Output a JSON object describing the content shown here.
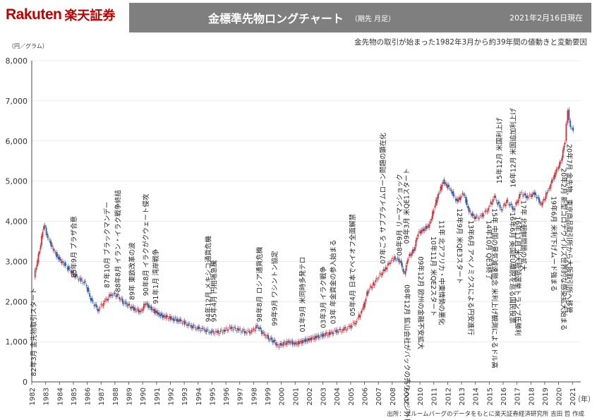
{
  "brand": {
    "name": "Rakuten",
    "kanji": "楽天証券"
  },
  "header": {
    "title": "金標準先物ロングチャート",
    "subtitle": "（期先 月足）",
    "date": "2021年2月16日現在"
  },
  "description": "金先物の取引が始まった1982年3月から約39年間の値動きと変動要因",
  "unit_label": "（円／グラム）",
  "x_unit": "（年）",
  "source": "出所：ブルームバーグのデータをもとに楽天証券経済研究所 吉田 哲 作成",
  "chart_data": {
    "type": "line",
    "ylim": [
      0,
      8000
    ],
    "yticks": [
      0,
      1000,
      2000,
      3000,
      4000,
      5000,
      6000,
      7000,
      8000
    ],
    "ytick_labels": [
      "0",
      "1,000",
      "2,000",
      "3,000",
      "4,000",
      "5,000",
      "6,000",
      "7,000",
      "8,000"
    ],
    "xlim": [
      1982,
      2021.6
    ],
    "xticks": [
      "1982",
      "1983",
      "1984",
      "1985",
      "1986",
      "1987",
      "1988",
      "1989",
      "1990",
      "1991",
      "1992",
      "1993",
      "1994",
      "1995",
      "1996",
      "1997",
      "1998",
      "1999",
      "2000",
      "2001",
      "2002",
      "2003",
      "2004",
      "2005",
      "2006",
      "2007",
      "2008",
      "2009",
      "2010",
      "2011",
      "2012",
      "2013",
      "2014",
      "2015",
      "2016",
      "2017",
      "2018",
      "2019",
      "2020",
      "2021"
    ],
    "grid": true,
    "colors": {
      "up": "#c8323c",
      "down": "#2f5a9e",
      "axis": "#444444",
      "grid": "#d9d9d9"
    },
    "series": [
      {
        "x": [
          1982.2,
          1982.6,
          1982.9,
          1983.1,
          1983.3,
          1983.6,
          1983.9,
          1984.2,
          1984.6,
          1985.0,
          1985.5,
          1985.9,
          1986.3,
          1986.8,
          1987.3,
          1987.8,
          1988.2,
          1988.6,
          1989.0,
          1989.5,
          1989.9,
          1990.2,
          1990.6,
          1990.9,
          1991.4,
          1991.9,
          1992.4,
          1992.9,
          1993.4,
          1993.9,
          1994.4,
          1994.9,
          1995.4,
          1995.9,
          1996.4,
          1996.9,
          1997.4,
          1997.9,
          1998.3,
          1998.7,
          1999.1,
          1999.5,
          1999.8,
          2000.2,
          2000.6,
          2001.0,
          2001.5,
          2001.9,
          2002.4,
          2002.9,
          2003.4,
          2003.9,
          2004.4,
          2004.9,
          2005.4,
          2005.9,
          2006.3,
          2006.6,
          2007.0,
          2007.5,
          2007.9,
          2008.2,
          2008.6,
          2008.9,
          2009.2,
          2009.6,
          2009.9,
          2010.3,
          2010.7,
          2011.2,
          2011.7,
          2012.2,
          2012.7,
          2013.2,
          2013.5,
          2013.9,
          2014.4,
          2014.9,
          2015.4,
          2015.9,
          2016.3,
          2016.8,
          2017.3,
          2017.8,
          2018.3,
          2018.8,
          2019.3,
          2019.8,
          2020.2,
          2020.5,
          2020.7,
          2020.9,
          2021.1
        ],
        "values": [
          2600,
          3300,
          3900,
          3700,
          3500,
          3300,
          3100,
          3000,
          2850,
          2700,
          2550,
          2450,
          2050,
          1800,
          2000,
          2200,
          2150,
          2000,
          1900,
          1800,
          1750,
          1950,
          1850,
          1750,
          1650,
          1600,
          1550,
          1500,
          1400,
          1350,
          1300,
          1250,
          1230,
          1280,
          1350,
          1300,
          1250,
          1250,
          1400,
          1200,
          1100,
          1000,
          900,
          950,
          1000,
          950,
          1000,
          1050,
          1100,
          1150,
          1200,
          1250,
          1300,
          1350,
          1500,
          1800,
          2300,
          2400,
          2600,
          2800,
          3000,
          3100,
          3000,
          2700,
          3100,
          3300,
          3700,
          3800,
          3900,
          4500,
          5000,
          4800,
          4500,
          4700,
          4300,
          4100,
          4100,
          4300,
          4600,
          4300,
          4500,
          4300,
          4700,
          4600,
          4700,
          4400,
          4800,
          5200,
          5500,
          6000,
          6800,
          6300,
          6300
        ]
      }
    ],
    "annotations": [
      {
        "year": 1982.3,
        "value": 100,
        "text": "82年3月 金先物取引スタート",
        "dir": "up"
      },
      {
        "year": 1985.2,
        "value": 2450,
        "text": "85年9月 プラザ合意",
        "dir": "up"
      },
      {
        "year": 1987.6,
        "value": 2200,
        "text": "87年10月 ブラックマンデー",
        "dir": "up"
      },
      {
        "year": 1988.4,
        "value": 2100,
        "text": "88年8月 イラン・イラク戦争終結",
        "dir": "up"
      },
      {
        "year": 1989.4,
        "value": 1900,
        "text": "89年 東欧改革の波",
        "dir": "up"
      },
      {
        "year": 1990.4,
        "value": 2000,
        "text": "90年8月 イラクがクウェート侵攻",
        "dir": "up"
      },
      {
        "year": 1991.1,
        "value": 1800,
        "text": "91年1月 湾岸戦争",
        "dir": "up"
      },
      {
        "year": 1994.9,
        "value": 1350,
        "text": "94年12月 メキシコ通貨危機",
        "dir": "up"
      },
      {
        "year": 1995.3,
        "value": 1350,
        "text": "95年4月 円相場急騰",
        "dir": "up"
      },
      {
        "year": 1998.6,
        "value": 1350,
        "text": "98年8月 ロシア通貨危機",
        "dir": "up"
      },
      {
        "year": 1999.7,
        "value": 1250,
        "text": "99年9月 ワシントン協定",
        "dir": "up"
      },
      {
        "year": 2001.7,
        "value": 1100,
        "text": "01年9月 米同時多発テロ",
        "dir": "up"
      },
      {
        "year": 2003.2,
        "value": 1200,
        "text": "03年3月 イラク戦争",
        "dir": "up"
      },
      {
        "year": 2003.9,
        "value": 1300,
        "text": "03年 年金資金の参入始まる",
        "dir": "up"
      },
      {
        "year": 2005.3,
        "value": 1500,
        "text": "05年4月 日本でペイオフ全面解禁",
        "dir": "up"
      },
      {
        "year": 2007.5,
        "value": 2800,
        "text": "07年ごろ サブプライムローン問題の顕在化",
        "dir": "up"
      },
      {
        "year": 2008.7,
        "value": 3000,
        "text": "08年9月 リーマンショック",
        "dir": "up"
      },
      {
        "year": 2009.2,
        "value": 3300,
        "text": "09年3月 米QE1スタート",
        "dir": "up"
      },
      {
        "year": 2008.9,
        "value": 2600,
        "text": "08年12月 鉱山会社がバックの売りヘッジ外し",
        "dir": "down"
      },
      {
        "year": 2009.9,
        "value": 3300,
        "text": "09年12月 欧州の金融不安拡大",
        "dir": "down"
      },
      {
        "year": 2010.8,
        "value": 3800,
        "text": "10年11月 米QE2スタート",
        "dir": "down"
      },
      {
        "year": 2011.4,
        "value": 4200,
        "text": "11年 北アフリカ・中東情勢の悪化",
        "dir": "down"
      },
      {
        "year": 2012.7,
        "value": 4500,
        "text": "12年9月 米QE3スタート",
        "dir": "down"
      },
      {
        "year": 2013.5,
        "value": 4200,
        "text": "13年6月 アベノミクスによる円安進行",
        "dir": "down"
      },
      {
        "year": 2014.8,
        "value": 4200,
        "text": "14年10月 QE3終了",
        "dir": "down"
      },
      {
        "year": 2015.2,
        "value": 4500,
        "text": "15年 中国の景気減速懸念 米利上げ観測によるドル高",
        "dir": "down"
      },
      {
        "year": 2015.9,
        "value": 4800,
        "text": "15年12月 米国利上げ",
        "dir": "up"
      },
      {
        "year": 2016.5,
        "value": 4400,
        "text": "16年6月 英国EU離脱を巡る国民投票",
        "dir": "down"
      },
      {
        "year": 2016.9,
        "value": 4300,
        "text": "16年11月 米大統領選挙トランプ氏勝利",
        "dir": "down"
      },
      {
        "year": 2016.9,
        "value": 4700,
        "text": "16年12月 米国追加利上げ",
        "dir": "up"
      },
      {
        "year": 2017.3,
        "value": 4700,
        "text": "17年 北朝鮮問題の拡大",
        "dir": "down"
      },
      {
        "year": 2019.5,
        "value": 4800,
        "text": "19年6月 米利下げムード強まる",
        "dir": "down"
      },
      {
        "year": 2020.2,
        "value": 5500,
        "text": "20年2月 新型コロナウイルス世界的な感染拡大始まる",
        "dir": "down"
      },
      {
        "year": 2020.6,
        "value": 6100,
        "text": "20年7月 金先物、東京商品取引所から大阪取引所へ移管",
        "dir": "down"
      }
    ]
  }
}
